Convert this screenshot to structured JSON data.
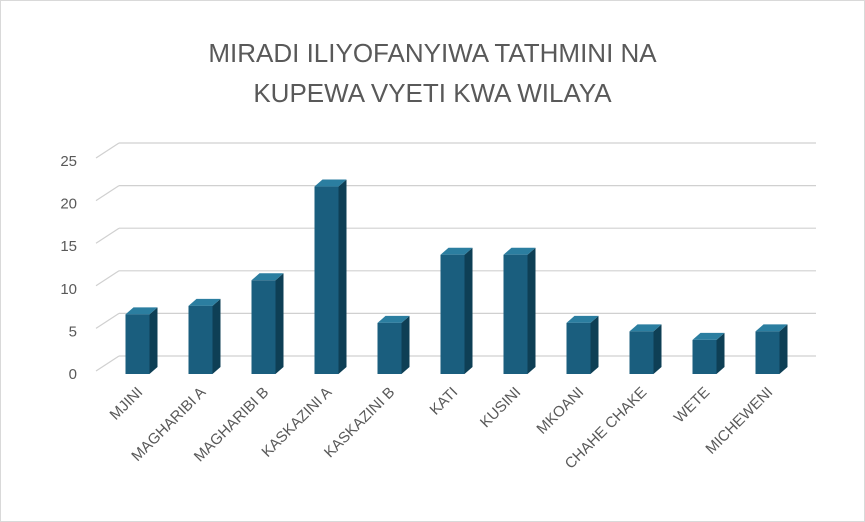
{
  "chart_data": {
    "type": "bar",
    "title": "MIRADI ILIYOFANYIWA TATHMINI NA KUPEWA VYETI KWA WILAYA",
    "categories": [
      "MJINI",
      "MAGHARIBI A",
      "MAGHARIBI B",
      "KASKAZINI A",
      "KASKAZINI B",
      "KATI",
      "KUSINI",
      "MKOANI",
      "CHAHE CHAKE",
      "WETE",
      "MICHEWENI"
    ],
    "values": [
      7,
      8,
      11,
      22,
      6,
      14,
      14,
      6,
      5,
      4,
      5
    ],
    "color": "#1a5e7e",
    "ylim": [
      0,
      25
    ],
    "yticks": [
      0,
      5,
      10,
      15,
      20,
      25
    ],
    "grid": true
  }
}
